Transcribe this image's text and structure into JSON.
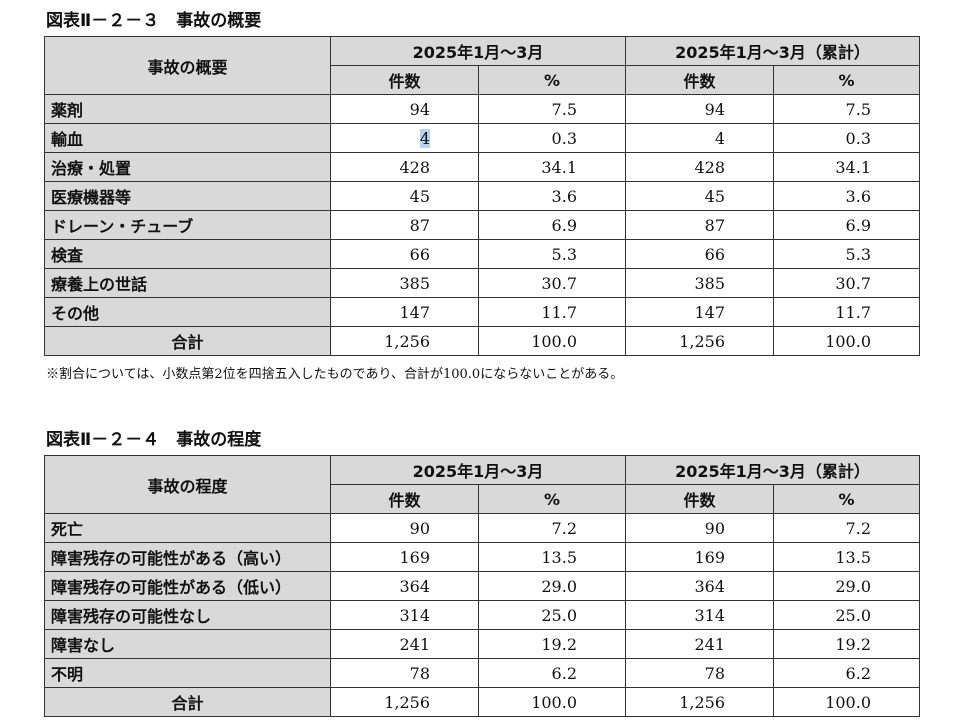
{
  "table1": {
    "title": "図表Ⅱ－２－３　事故の概要",
    "header_label": "事故の概要",
    "period1": "2025年1月～3月",
    "period2": "2025年1月～3月（累計）",
    "col_count": "件数",
    "col_pct": "%",
    "rows": [
      {
        "label": "薬剤",
        "c1": "94",
        "p1": "7.5",
        "c2": "94",
        "p2": "7.5"
      },
      {
        "label": "輸血",
        "c1": "4",
        "p1": "0.3",
        "c2": "4",
        "p2": "0.3"
      },
      {
        "label": "治療・処置",
        "c1": "428",
        "p1": "34.1",
        "c2": "428",
        "p2": "34.1"
      },
      {
        "label": "医療機器等",
        "c1": "45",
        "p1": "3.6",
        "c2": "45",
        "p2": "3.6"
      },
      {
        "label": "ドレーン・チューブ",
        "c1": "87",
        "p1": "6.9",
        "c2": "87",
        "p2": "6.9"
      },
      {
        "label": "検査",
        "c1": "66",
        "p1": "5.3",
        "c2": "66",
        "p2": "5.3"
      },
      {
        "label": "療養上の世話",
        "c1": "385",
        "p1": "30.7",
        "c2": "385",
        "p2": "30.7"
      },
      {
        "label": "その他",
        "c1": "147",
        "p1": "11.7",
        "c2": "147",
        "p2": "11.7"
      }
    ],
    "total": {
      "label": "合計",
      "c1": "1,256",
      "p1": "100.0",
      "c2": "1,256",
      "p2": "100.0"
    },
    "note": "※割合については、小数点第2位を四捨五入したものであり、合計が100.0にならないことがある。"
  },
  "table2": {
    "title": "図表Ⅱ－２－４　事故の程度",
    "header_label": "事故の程度",
    "period1": "2025年1月～3月",
    "period2": "2025年1月～3月（累計）",
    "col_count": "件数",
    "col_pct": "%",
    "rows": [
      {
        "label": "死亡",
        "c1": "90",
        "p1": "7.2",
        "c2": "90",
        "p2": "7.2"
      },
      {
        "label": "障害残存の可能性がある（高い）",
        "c1": "169",
        "p1": "13.5",
        "c2": "169",
        "p2": "13.5"
      },
      {
        "label": "障害残存の可能性がある（低い）",
        "c1": "364",
        "p1": "29.0",
        "c2": "364",
        "p2": "29.0"
      },
      {
        "label": "障害残存の可能性なし",
        "c1": "314",
        "p1": "25.0",
        "c2": "314",
        "p2": "25.0"
      },
      {
        "label": "障害なし",
        "c1": "241",
        "p1": "19.2",
        "c2": "241",
        "p2": "19.2"
      },
      {
        "label": "不明",
        "c1": "78",
        "p1": "6.2",
        "c2": "78",
        "p2": "6.2"
      }
    ],
    "total": {
      "label": "合計",
      "c1": "1,256",
      "p1": "100.0",
      "c2": "1,256",
      "p2": "100.0"
    }
  }
}
